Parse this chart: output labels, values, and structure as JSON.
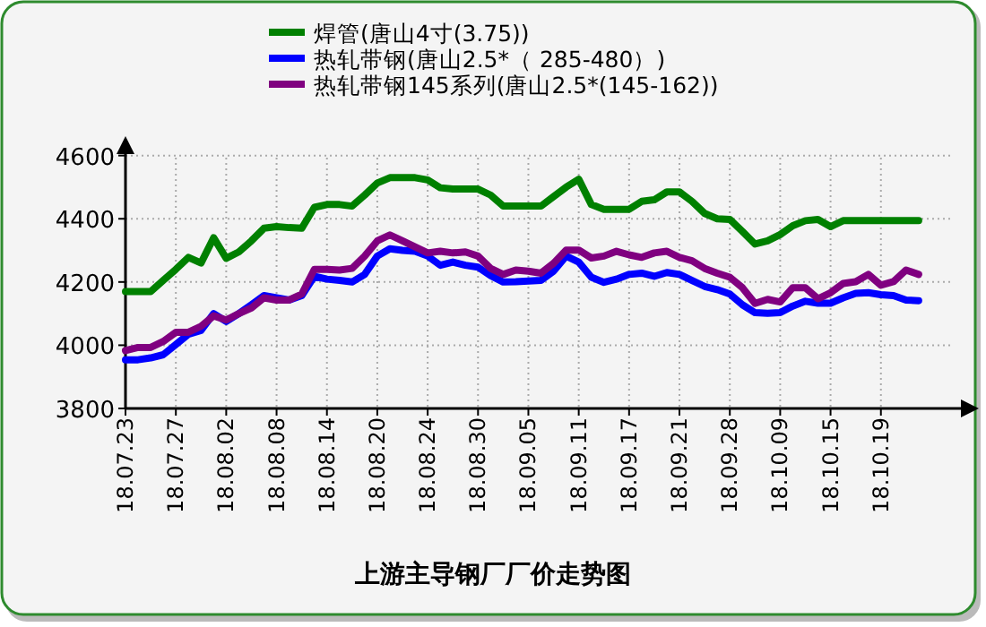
{
  "chart_data": {
    "type": "line",
    "title": "上游主导钢厂厂价走势图",
    "categories": [
      "18.07.23",
      null,
      null,
      null,
      "18.07.27",
      null,
      null,
      null,
      "18.08.02",
      null,
      null,
      null,
      "18.08.08",
      null,
      null,
      null,
      "18.08.14",
      null,
      null,
      null,
      "18.08.20",
      null,
      null,
      null,
      "18.08.24",
      null,
      null,
      null,
      "18.08.30",
      null,
      null,
      null,
      "18.09.05",
      null,
      null,
      null,
      "18.09.11",
      null,
      null,
      null,
      "18.09.17",
      null,
      null,
      null,
      "18.09.21",
      null,
      null,
      null,
      "18.09.28",
      null,
      null,
      null,
      "18.10.09",
      null,
      null,
      null,
      "18.10.15",
      null,
      null,
      null,
      "18.10.19",
      null,
      null,
      null
    ],
    "series": [
      {
        "name": "焊管(唐山4寸(3.75))",
        "color": "#008000",
        "values": [
          4170,
          4170,
          4170,
          4205,
          4240,
          4278,
          4260,
          4340,
          4275,
          4295,
          4330,
          4370,
          4375,
          4372,
          4370,
          4436,
          4445,
          4445,
          4440,
          4475,
          4513,
          4530,
          4530,
          4530,
          4523,
          4498,
          4494,
          4494,
          4494,
          4475,
          4440,
          4440,
          4440,
          4440,
          4470,
          4500,
          4525,
          4445,
          4430,
          4430,
          4430,
          4455,
          4460,
          4485,
          4485,
          4455,
          4417,
          4400,
          4398,
          4360,
          4320,
          4330,
          4350,
          4378,
          4394,
          4398,
          4375,
          4394,
          4394,
          4394,
          4394,
          4394,
          4394,
          4394
        ]
      },
      {
        "name": "热轧带钢(唐山2.5*（ 285-480）)",
        "color": "#0000ff",
        "values": [
          3954,
          3954,
          3960,
          3970,
          4002,
          4035,
          4047,
          4100,
          4075,
          4100,
          4128,
          4157,
          4150,
          4143,
          4157,
          4218,
          4209,
          4205,
          4200,
          4224,
          4282,
          4305,
          4300,
          4297,
          4282,
          4253,
          4263,
          4253,
          4247,
          4220,
          4200,
          4201,
          4203,
          4205,
          4234,
          4282,
          4263,
          4215,
          4199,
          4209,
          4224,
          4228,
          4218,
          4230,
          4224,
          4205,
          4186,
          4176,
          4162,
          4128,
          4103,
          4101,
          4103,
          4124,
          4139,
          4133,
          4133,
          4150,
          4164,
          4166,
          4160,
          4157,
          4143,
          4141
        ]
      },
      {
        "name": "热轧带钢145系列(唐山2.5*(145-162))",
        "color": "#800080",
        "values": [
          3983,
          3993,
          3993,
          4012,
          4041,
          4041,
          4060,
          4093,
          4080,
          4100,
          4118,
          4150,
          4143,
          4143,
          4162,
          4240,
          4240,
          4238,
          4243,
          4282,
          4330,
          4349,
          4330,
          4311,
          4292,
          4297,
          4292,
          4295,
          4282,
          4243,
          4224,
          4238,
          4234,
          4228,
          4259,
          4301,
          4301,
          4276,
          4282,
          4297,
          4286,
          4278,
          4292,
          4297,
          4278,
          4267,
          4243,
          4228,
          4215,
          4182,
          4132,
          4145,
          4137,
          4182,
          4182,
          4147,
          4166,
          4195,
          4201,
          4224,
          4190,
          4201,
          4238,
          4224
        ]
      }
    ],
    "ylim": [
      3800,
      4650
    ],
    "yticks": [
      3800,
      4000,
      4200,
      4400,
      4600
    ],
    "grid": true,
    "legend": "top",
    "line_style": "solid",
    "marker": "none"
  }
}
